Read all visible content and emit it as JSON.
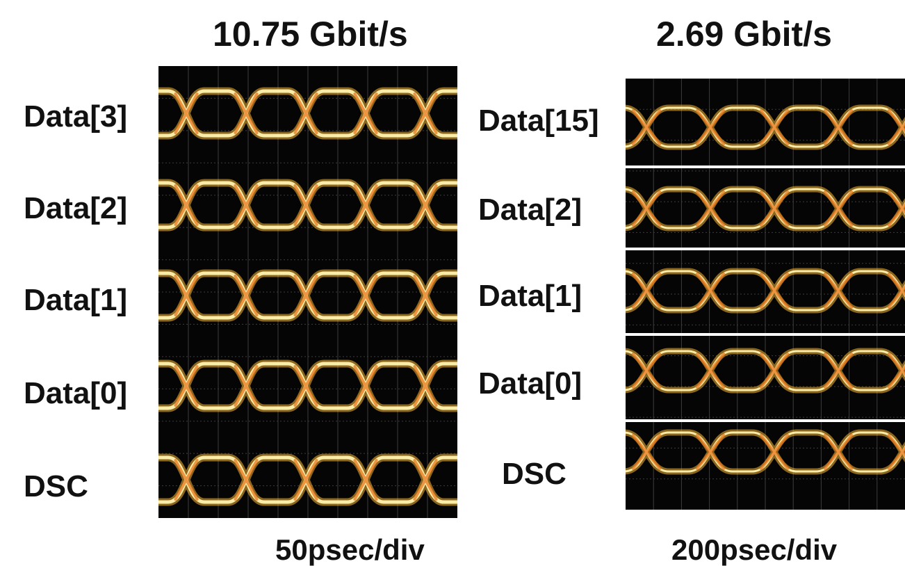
{
  "figure": {
    "left_panel": {
      "rate": "10.75 Gbit/s",
      "timebase": "50psec/div",
      "channels": [
        "Data[3]",
        "Data[2]",
        "Data[1]",
        "Data[0]",
        "DSC"
      ]
    },
    "right_panel": {
      "rate": "2.69 Gbit/s",
      "timebase": "200psec/div",
      "channels": [
        "Data[15]",
        "Data[2]",
        "Data[1]",
        "Data[0]",
        "DSC"
      ]
    }
  },
  "colors": {
    "screen": "#050505",
    "grid": "#6b6b6b",
    "trace_hot": "#fff3b0",
    "trace": "#f7b733",
    "trace_warm": "#e8771e"
  }
}
